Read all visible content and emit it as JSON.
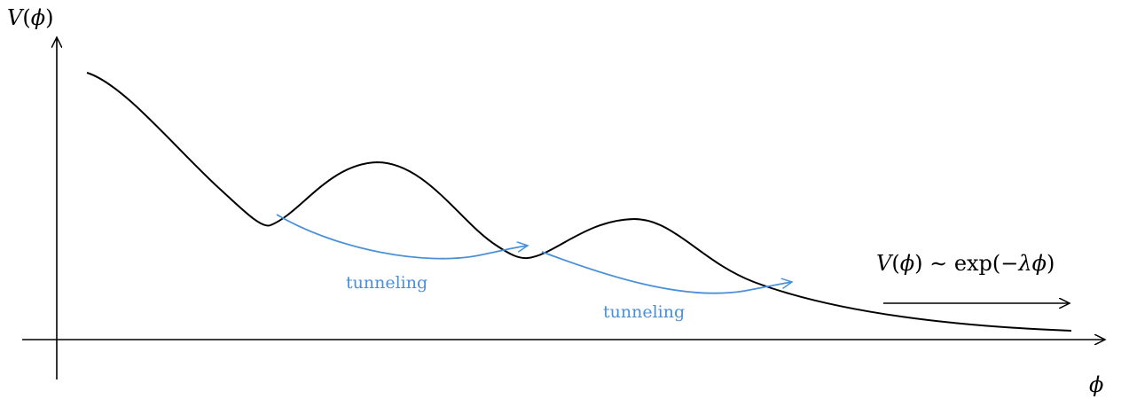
{
  "axes": {
    "y_label": {
      "name": "V",
      "open": "(",
      "var": "ϕ",
      "close": ")"
    },
    "x_label": "ϕ"
  },
  "annotations": {
    "tunneling_1": "tunneling",
    "tunneling_2": "tunneling",
    "asymptote": {
      "lhs_name": "V",
      "lhs_open": "(",
      "lhs_var": "ϕ",
      "lhs_close": ")",
      "relation": " ∼ exp(−",
      "lambda": "λ",
      "var": "ϕ",
      "close": ")"
    }
  },
  "colors": {
    "axis": "#000000",
    "potential_curve": "#000000",
    "tunneling": "#4a90d9"
  }
}
